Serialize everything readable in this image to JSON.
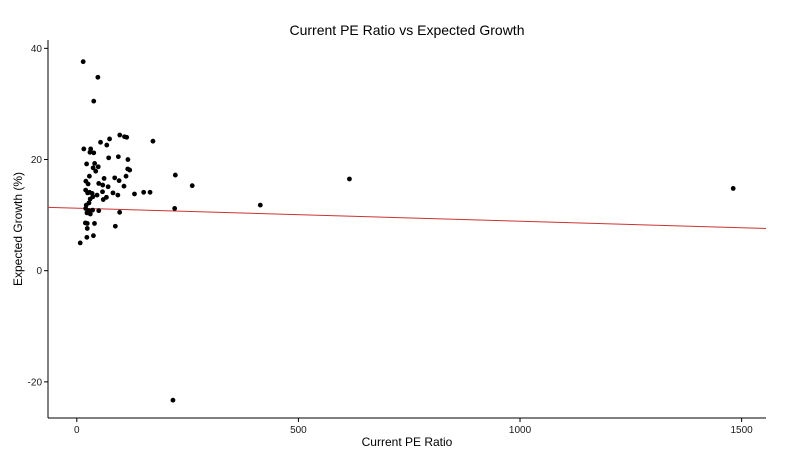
{
  "chart_data": {
    "type": "scatter",
    "title": "Current PE Ratio vs Expected Growth",
    "xlabel": "Current PE Ratio",
    "ylabel": "Expected Growth (%)",
    "xlim": [
      -65,
      1555
    ],
    "ylim": [
      -26.5,
      41.5
    ],
    "xticks": [
      0,
      500,
      1000,
      1500
    ],
    "yticks": [
      -20,
      0,
      20,
      40
    ],
    "grid": false,
    "colors": {
      "points": "#000000",
      "trend_line": "#cc3333",
      "axis": "#000000"
    },
    "trend_line": {
      "x": [
        -65,
        1555
      ],
      "y": [
        11.4,
        7.6
      ]
    },
    "series": [
      {
        "points": [
          [
            14.4,
            37.6
          ],
          [
            47.5,
            34.8
          ],
          [
            38.2,
            30.5
          ],
          [
            15.8,
            21.9
          ],
          [
            31.3,
            21.9
          ],
          [
            29.6,
            21.3
          ],
          [
            38.2,
            21.2
          ],
          [
            22.1,
            19.2
          ],
          [
            40.2,
            19.3
          ],
          [
            48.4,
            18.7
          ],
          [
            36.8,
            18.5
          ],
          [
            42.7,
            17.9
          ],
          [
            28.4,
            17.0
          ],
          [
            20.4,
            16.1
          ],
          [
            25.5,
            15.6
          ],
          [
            20.0,
            14.5
          ],
          [
            28.6,
            14.1
          ],
          [
            24.4,
            14.0
          ],
          [
            34.6,
            13.9
          ],
          [
            36.2,
            13.3
          ],
          [
            45.7,
            13.6
          ],
          [
            30.2,
            12.9
          ],
          [
            27.5,
            12.2
          ],
          [
            21.3,
            11.8
          ],
          [
            20.0,
            11.2
          ],
          [
            26.8,
            10.8
          ],
          [
            35.6,
            10.9
          ],
          [
            49.5,
            10.8
          ],
          [
            22.9,
            10.4
          ],
          [
            30.5,
            10.2
          ],
          [
            19.3,
            8.6
          ],
          [
            23.6,
            8.5
          ],
          [
            39.9,
            8.5
          ],
          [
            23.6,
            7.6
          ],
          [
            22.7,
            6.0
          ],
          [
            37.5,
            6.3
          ],
          [
            7.7,
            5.0
          ],
          [
            53.5,
            23.1
          ],
          [
            67.6,
            22.6
          ],
          [
            73.9,
            23.7
          ],
          [
            96.9,
            24.4
          ],
          [
            107.6,
            24.1
          ],
          [
            112.6,
            24.0
          ],
          [
            171.8,
            23.3
          ],
          [
            71.9,
            20.3
          ],
          [
            93.7,
            20.5
          ],
          [
            115.3,
            20.0
          ],
          [
            114.9,
            18.3
          ],
          [
            119.4,
            18.1
          ],
          [
            111.1,
            17.0
          ],
          [
            61.6,
            16.6
          ],
          [
            85.5,
            16.7
          ],
          [
            95.4,
            16.2
          ],
          [
            58.5,
            15.4
          ],
          [
            70.6,
            15.1
          ],
          [
            49.4,
            15.7
          ],
          [
            58.0,
            14.2
          ],
          [
            81.6,
            14.0
          ],
          [
            92.6,
            13.6
          ],
          [
            130.1,
            13.8
          ],
          [
            106.4,
            15.2
          ],
          [
            66.8,
            13.2
          ],
          [
            59.7,
            12.8
          ],
          [
            86.9,
            8.0
          ],
          [
            96.7,
            10.5
          ],
          [
            150.8,
            14.1
          ],
          [
            165.3,
            14.1
          ],
          [
            222.3,
            17.2
          ],
          [
            260.4,
            15.3
          ],
          [
            220.8,
            11.2
          ],
          [
            414.0,
            11.8
          ],
          [
            615.1,
            16.5
          ],
          [
            1481.0,
            14.8
          ],
          [
            216.9,
            -23.3
          ]
        ]
      }
    ]
  }
}
